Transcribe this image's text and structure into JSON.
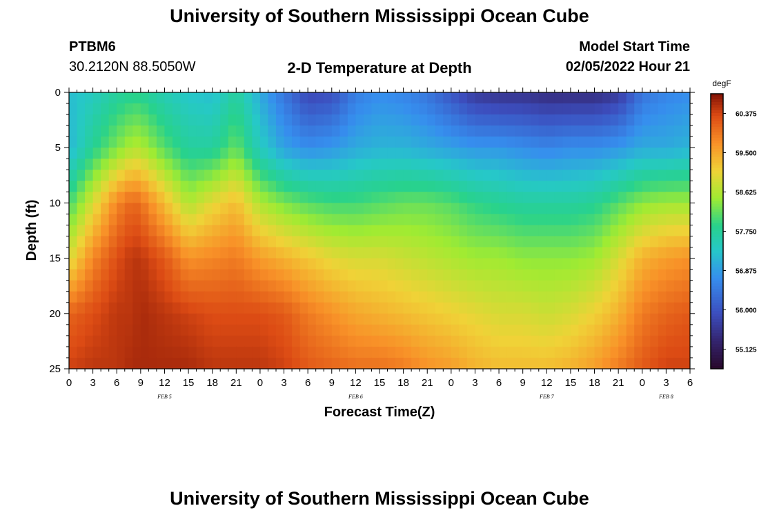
{
  "page": {
    "title": "University of Southern Mississippi Ocean Cube",
    "footer_title": "University of Southern Mississippi Ocean Cube",
    "station_id": "PTBM6",
    "station_coords": "30.2120N  88.5050W",
    "plot_title": "2-D Temperature at Depth",
    "model_start_label": "Model Start Time",
    "model_start_value": "02/05/2022 Hour 21"
  },
  "chart_data": {
    "type": "heatmap",
    "title": "2-D Temperature at Depth",
    "xlabel": "Forecast Time(Z)",
    "ylabel": "Depth (ft)",
    "x_unit": "hours since 02/05/2022 00Z",
    "xlim": [
      0,
      78
    ],
    "ylim": [
      25,
      0
    ],
    "x_tick_hours": [
      0,
      3,
      6,
      9,
      12,
      15,
      18,
      21,
      24,
      27,
      30,
      33,
      36,
      39,
      42,
      45,
      48,
      51,
      54,
      57,
      60,
      63,
      66,
      69,
      72,
      75,
      78
    ],
    "x_tick_labels": [
      "0",
      "3",
      "6",
      "9",
      "12",
      "15",
      "18",
      "21",
      "0",
      "3",
      "6",
      "9",
      "12",
      "15",
      "18",
      "21",
      "0",
      "3",
      "6",
      "9",
      "12",
      "15",
      "18",
      "21",
      "0",
      "3",
      "6"
    ],
    "y_ticks": [
      0,
      5,
      10,
      15,
      20,
      25
    ],
    "y_tick_labels": [
      "0",
      "5",
      "10",
      "15",
      "20",
      "25"
    ],
    "date_labels": [
      {
        "label": "FEB 5",
        "hour": 12
      },
      {
        "label": "FEB 6",
        "hour": 36
      },
      {
        "label": "FEB 7",
        "hour": 60
      },
      {
        "label": "FEB 8",
        "hour": 75
      }
    ],
    "colorbar": {
      "unit": "degF",
      "min": 54.6875,
      "max": 60.8125,
      "tick_values": [
        60.375,
        59.5,
        58.625,
        57.75,
        56.875,
        56.0,
        55.125
      ],
      "tick_labels": [
        "60.375",
        "59.500",
        "58.625",
        "57.750",
        "56.875",
        "56.000",
        "55.125"
      ]
    },
    "grid_shape": [
      25,
      78
    ],
    "depth_axis_ft": [
      0,
      5,
      10,
      15,
      20,
      25
    ],
    "time_axis_hours": [
      0,
      3,
      6,
      8,
      9,
      12,
      15,
      18,
      21,
      24,
      27,
      30,
      33,
      36,
      39,
      42,
      45,
      48,
      51,
      54,
      57,
      60,
      63,
      66,
      69,
      72,
      75,
      78
    ],
    "temperature_degF": [
      [
        57.2,
        57.4,
        57.7,
        57.8,
        57.8,
        57.5,
        57.3,
        57.2,
        57.7,
        57.0,
        56.4,
        55.8,
        55.9,
        56.5,
        56.7,
        56.6,
        56.4,
        56.0,
        55.6,
        55.5,
        55.5,
        55.4,
        55.4,
        55.4,
        55.6,
        56.4,
        56.6,
        56.7
      ],
      [
        57.1,
        57.8,
        58.3,
        58.6,
        58.6,
        58.1,
        57.7,
        57.7,
        58.2,
        57.4,
        56.9,
        56.7,
        56.8,
        57.0,
        57.1,
        57.1,
        57.0,
        56.9,
        56.8,
        56.8,
        56.7,
        56.6,
        56.7,
        56.7,
        56.8,
        57.0,
        57.0,
        57.1
      ],
      [
        58.0,
        58.9,
        59.8,
        60.1,
        60.0,
        59.3,
        58.6,
        59.0,
        59.3,
        58.6,
        58.3,
        58.1,
        58.0,
        58.0,
        58.1,
        58.2,
        58.2,
        58.1,
        57.9,
        57.8,
        57.7,
        57.7,
        57.7,
        57.8,
        58.1,
        58.4,
        58.5,
        58.5
      ],
      [
        58.9,
        59.8,
        60.3,
        60.5,
        60.5,
        60.2,
        59.7,
        59.8,
        59.9,
        59.6,
        59.4,
        59.2,
        59.0,
        58.9,
        58.9,
        58.8,
        58.7,
        58.6,
        58.5,
        58.5,
        58.4,
        58.4,
        58.4,
        58.5,
        58.9,
        59.4,
        59.6,
        59.7
      ],
      [
        60.1,
        60.3,
        60.5,
        60.5,
        60.6,
        60.5,
        60.4,
        60.3,
        60.3,
        60.3,
        60.2,
        59.9,
        59.7,
        59.5,
        59.4,
        59.3,
        59.2,
        59.1,
        59.0,
        58.9,
        58.9,
        58.8,
        58.9,
        59.1,
        59.4,
        59.9,
        60.1,
        60.2
      ],
      [
        60.4,
        60.5,
        60.5,
        60.6,
        60.6,
        60.6,
        60.6,
        60.5,
        60.5,
        60.5,
        60.4,
        60.2,
        60.1,
        60.0,
        60.0,
        59.9,
        59.7,
        59.6,
        59.4,
        59.3,
        59.3,
        59.3,
        59.4,
        59.6,
        59.9,
        60.2,
        60.4,
        60.4
      ]
    ]
  }
}
